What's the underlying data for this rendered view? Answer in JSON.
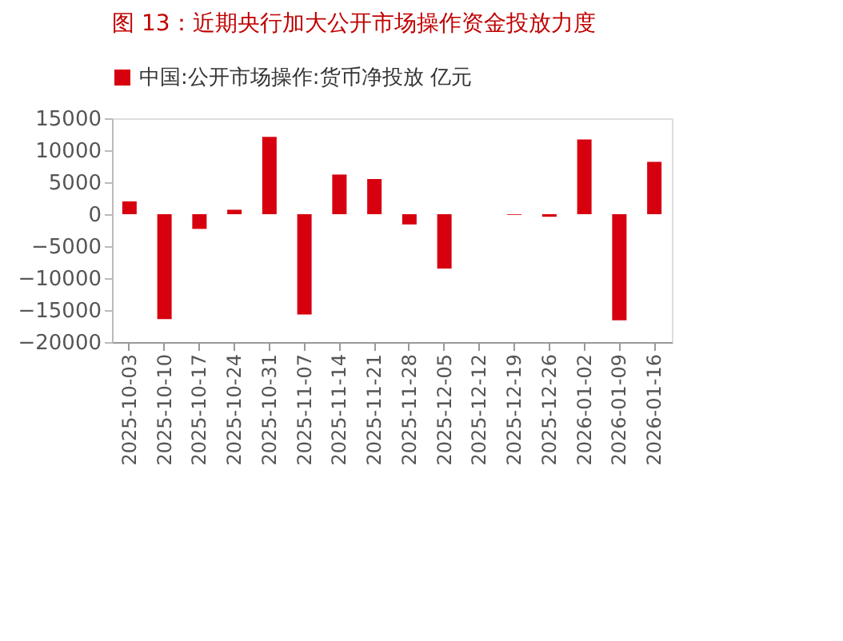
{
  "chart_data": {
    "type": "bar",
    "title": "图 13：近期央行加大公开市场操作资金投放力度",
    "categories": [
      "2025-10-03",
      "2025-10-10",
      "2025-10-17",
      "2025-10-24",
      "2025-10-31",
      "2025-11-07",
      "2025-11-14",
      "2025-11-21",
      "2025-11-28",
      "2025-12-05",
      "2025-12-12",
      "2025-12-19",
      "2025-12-26",
      "2026-01-02",
      "2026-01-09",
      "2026-01-16"
    ],
    "series": [
      {
        "name": "中国:公开市场操作:货币净投放 亿元",
        "color": "#d7000f",
        "values": [
          2000,
          -16400,
          -2300,
          700,
          12100,
          -15700,
          6200,
          5500,
          -1600,
          -8500,
          0,
          -100,
          -400,
          11700,
          -16600,
          8200
        ]
      }
    ],
    "ylim": [
      -20000,
      15000
    ],
    "yticks": [
      -20000,
      -15000,
      -10000,
      -5000,
      0,
      5000,
      10000,
      15000
    ],
    "grid": false,
    "legend": "top"
  }
}
